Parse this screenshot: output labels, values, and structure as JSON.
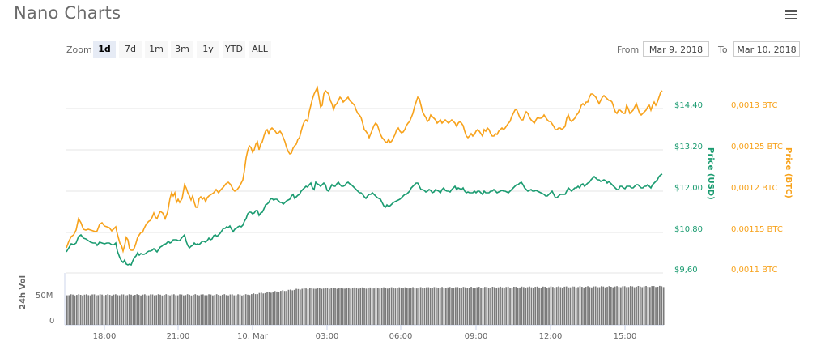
{
  "header": {
    "title": "Nano Charts",
    "menu_icon": "hamburger-menu-icon"
  },
  "range_selector": {
    "zoom_label": "Zoom",
    "buttons": [
      "1d",
      "7d",
      "1m",
      "3m",
      "1y",
      "YTD",
      "ALL"
    ],
    "active": "1d",
    "from_label": "From",
    "from_value": "Mar 9, 2018",
    "to_label": "To",
    "to_value": "Mar 10, 2018"
  },
  "colors": {
    "usd": "#1a9b70",
    "btc": "#f7a21b",
    "volume": "#777777"
  },
  "chart_data": {
    "type": "line",
    "title": "Nano Charts",
    "x_tick_labels": [
      "18:00",
      "21:00",
      "10. Mar",
      "03:00",
      "06:00",
      "09:00",
      "12:00",
      "15:00"
    ],
    "y_axes": [
      {
        "label": "Price (USD)",
        "ticks": [
          "$9,60",
          "$10,80",
          "$12,00",
          "$13,20",
          "$14,40"
        ],
        "range": [
          9.6,
          14.4
        ]
      },
      {
        "label": "Price (BTC)",
        "ticks": [
          "0,0011 BTC",
          "0,00115 BTC",
          "0,0012 BTC",
          "0,00125 BTC",
          "0,0013 BTC"
        ],
        "range": [
          0.0011,
          0.0013
        ]
      },
      {
        "label": "24h Vol",
        "ticks": [
          "0",
          "50M"
        ]
      }
    ],
    "grid": true,
    "series": [
      {
        "name": "Price (USD)",
        "axis": "USD",
        "x": [
          "16:30",
          "17:00",
          "18:00",
          "19:00",
          "19:40",
          "20:30",
          "21:00",
          "22:00",
          "23:00",
          "00:00",
          "01:00",
          "02:00",
          "03:00",
          "04:00",
          "05:00",
          "06:00",
          "07:00",
          "08:00",
          "09:00",
          "10:00",
          "11:00",
          "12:00",
          "13:00",
          "14:00",
          "15:00",
          "16:15"
        ],
        "values": [
          10.5,
          10.9,
          10.7,
          10.4,
          9.9,
          10.1,
          10.4,
          10.5,
          10.8,
          11.2,
          11.5,
          12.0,
          12.1,
          12.1,
          11.9,
          11.5,
          11.9,
          11.9,
          12.0,
          11.9,
          12.0,
          11.7,
          12.0,
          12.1,
          12.0,
          12.4
        ]
      },
      {
        "name": "Price (BTC)",
        "axis": "BTC",
        "x": [
          "16:30",
          "17:00",
          "18:00",
          "19:00",
          "19:40",
          "20:30",
          "21:00",
          "22:00",
          "23:00",
          "00:00",
          "01:00",
          "02:00",
          "03:00",
          "04:00",
          "05:00",
          "06:00",
          "07:00",
          "08:00",
          "09:00",
          "10:00",
          "11:00",
          "12:00",
          "13:00",
          "14:00",
          "15:00",
          "16:15"
        ],
        "values": [
          0.00114,
          0.00118,
          0.00116,
          0.00115,
          0.00113,
          0.00116,
          0.00118,
          0.0012,
          0.00121,
          0.00126,
          0.00126,
          0.00131,
          0.0013,
          0.00128,
          0.00125,
          0.00127,
          0.00128,
          0.00126,
          0.00126,
          0.0013,
          0.00128,
          0.00126,
          0.00129,
          0.00129,
          0.00128,
          0.0013
        ]
      },
      {
        "name": "24h Vol",
        "type": "bar",
        "values_approx": "~47M-58M, gradually rising"
      }
    ]
  }
}
